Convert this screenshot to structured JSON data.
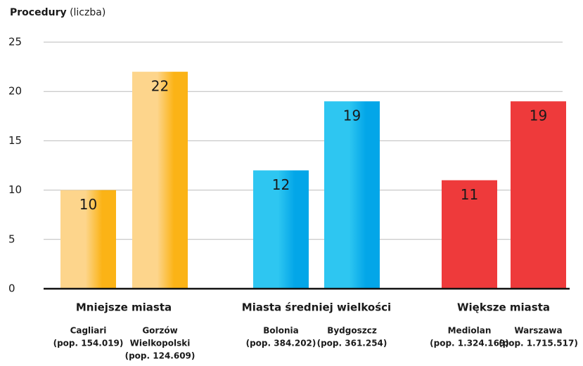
{
  "chart_data": {
    "type": "grouped_bar",
    "title": "Procedury",
    "subtitle": "(liczba)",
    "ylim": [
      0,
      25
    ],
    "yticks": [
      0,
      5,
      10,
      15,
      20,
      25
    ],
    "grid": true,
    "groups": [
      {
        "name": "Mniejsze miasta",
        "color": "#fbb316",
        "color_light": "#fdd58c",
        "label_color": "#e8413c",
        "categories": [
          [
            "Cagliari",
            "(pop. 154.019)"
          ],
          [
            "Gorzów",
            "Wielkopolski",
            "(pop. 124.609)"
          ]
        ],
        "values": [
          10,
          22
        ]
      },
      {
        "name": "Miasta średniej wielkości",
        "color": "#03a6e8",
        "color_light": "#2ec6f1",
        "label_color": "#ffffff",
        "categories": [
          [
            "Bolonia",
            "(pop. 384.202)"
          ],
          [
            "Bydgoszcz",
            "(pop. 361.254)"
          ]
        ],
        "values": [
          12,
          19
        ]
      },
      {
        "name": "Większe miasta",
        "color": "#ee3a3b",
        "color_light": "#ee3a3b",
        "label_color": "#ffffff",
        "categories": [
          [
            "Mediolan",
            "(pop. 1.324.169)"
          ],
          [
            "Warszawa",
            "(pop. 1.715.517)"
          ]
        ],
        "values": [
          11,
          19
        ]
      }
    ]
  }
}
